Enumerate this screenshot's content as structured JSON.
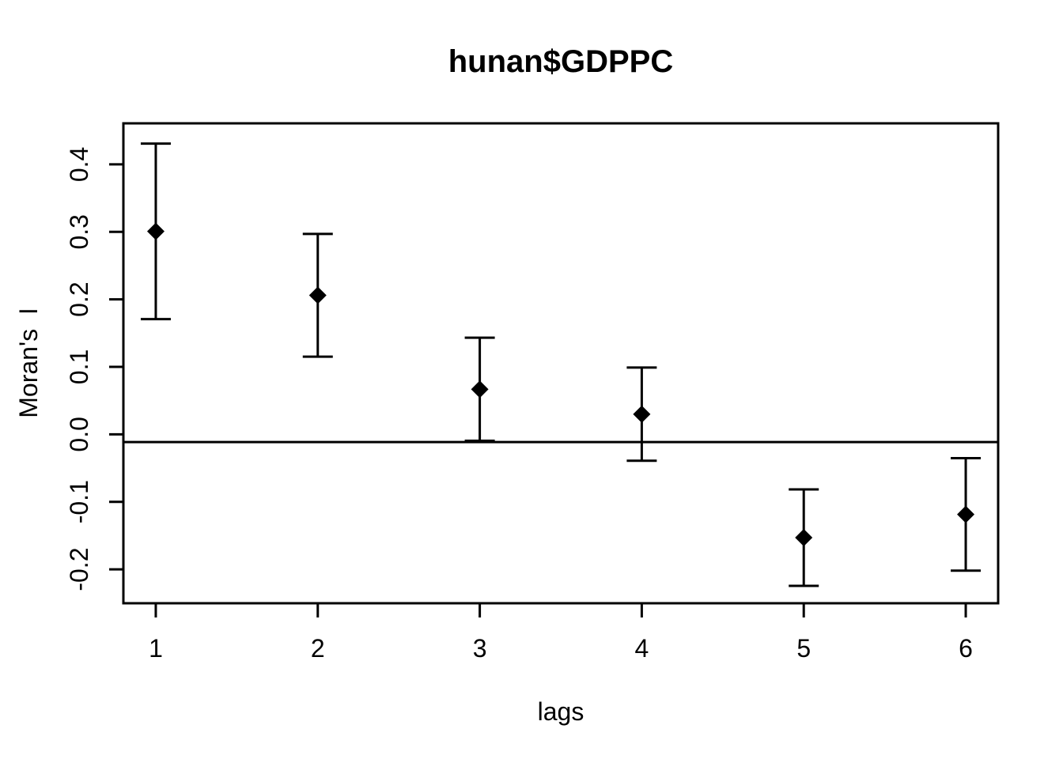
{
  "figure": {
    "background_color": "#ffffff",
    "foreground_color": "#000000"
  },
  "chart_data": {
    "type": "scatter",
    "subtype": "correlogram-error-bars",
    "title": "hunan$GDPPC",
    "xlabel": "lags",
    "ylabel": "Moran's  I",
    "x": [
      1,
      2,
      3,
      4,
      5,
      6
    ],
    "series": [
      {
        "name": "Moran's I estimate",
        "values": [
          0.3008,
          0.206,
          0.0668,
          0.0299,
          -0.1531,
          -0.1187
        ],
        "lower": [
          0.1707,
          0.115,
          -0.0096,
          -0.0391,
          -0.2245,
          -0.202
        ],
        "upper": [
          0.4308,
          0.297,
          0.1432,
          0.099,
          -0.0816,
          -0.0354
        ]
      }
    ],
    "expectation_line": -0.0115,
    "xlim": [
      0.8,
      6.2
    ],
    "ylim": [
      -0.2503,
      0.4608
    ],
    "x_ticks": [
      1,
      2,
      3,
      4,
      5,
      6
    ],
    "x_tick_labels": [
      "1",
      "2",
      "3",
      "4",
      "5",
      "6"
    ],
    "y_ticks": [
      -0.2,
      -0.1,
      0.0,
      0.1,
      0.2,
      0.3,
      0.4
    ],
    "y_tick_labels": [
      "-0.2",
      "-0.1",
      "0.0",
      "0.1",
      "0.2",
      "0.3",
      "0.4"
    ],
    "grid": false,
    "legend": "none",
    "marker": "filled-diamond",
    "colors": {
      "line": "#000000",
      "marker": "#000000",
      "text": "#000000",
      "background": "#ffffff"
    }
  }
}
